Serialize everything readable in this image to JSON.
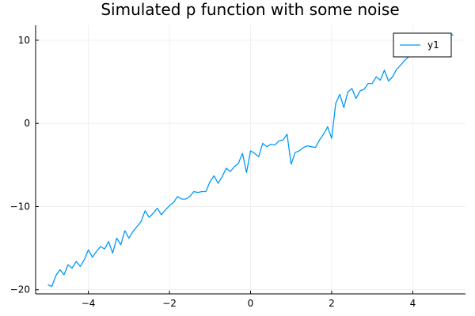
{
  "chart_data": {
    "type": "line",
    "title": "Simulated p function with some noise",
    "xlabel": "",
    "ylabel": "",
    "xlim": [
      -5.3,
      5.3
    ],
    "ylim": [
      -20.5,
      11.8
    ],
    "xticks": [
      -4,
      -2,
      0,
      2,
      4
    ],
    "xtick_labels": [
      "−4",
      "−2",
      "0",
      "2",
      "4"
    ],
    "yticks": [
      -20,
      -10,
      0,
      10
    ],
    "ytick_labels": [
      "−20",
      "−10",
      "0",
      "10"
    ],
    "grid": true,
    "legend": "top-right",
    "series": [
      {
        "name": "y1",
        "color": "#009AFA",
        "x": [
          -5.0,
          -4.9,
          -4.8,
          -4.7,
          -4.6,
          -4.5,
          -4.4,
          -4.3,
          -4.2,
          -4.1,
          -4.0,
          -3.9,
          -3.8,
          -3.7,
          -3.6,
          -3.5,
          -3.4,
          -3.3,
          -3.2,
          -3.1,
          -3.0,
          -2.9,
          -2.8,
          -2.7,
          -2.6,
          -2.5,
          -2.4,
          -2.3,
          -2.2,
          -2.1,
          -2.0,
          -1.9,
          -1.8,
          -1.7,
          -1.6,
          -1.5,
          -1.4,
          -1.3,
          -1.2,
          -1.1,
          -1.0,
          -0.9,
          -0.8,
          -0.7,
          -0.6,
          -0.5,
          -0.4,
          -0.3,
          -0.2,
          -0.1,
          0.0,
          0.1,
          0.2,
          0.3,
          0.4,
          0.5,
          0.6,
          0.7,
          0.8,
          0.9,
          1.0,
          1.1,
          1.2,
          1.3,
          1.4,
          1.5,
          1.6,
          1.7,
          1.8,
          1.9,
          2.0,
          2.1,
          2.2,
          2.3,
          2.4,
          2.5,
          2.6,
          2.7,
          2.8,
          2.9,
          3.0,
          3.1,
          3.2,
          3.3,
          3.4,
          3.5,
          3.6,
          3.7,
          3.8,
          3.9,
          4.0,
          4.1,
          4.2,
          4.3,
          4.4,
          4.5,
          4.6,
          4.7,
          4.8,
          4.9,
          5.0
        ],
        "values": [
          -19.4,
          -19.6,
          -18.3,
          -17.6,
          -18.2,
          -17.0,
          -17.4,
          -16.6,
          -17.2,
          -16.4,
          -15.2,
          -16.1,
          -15.4,
          -14.8,
          -15.1,
          -14.2,
          -15.6,
          -13.8,
          -14.6,
          -12.9,
          -13.8,
          -13.0,
          -12.4,
          -11.8,
          -10.5,
          -11.3,
          -10.8,
          -10.2,
          -11.0,
          -10.4,
          -9.9,
          -9.5,
          -8.8,
          -9.1,
          -9.1,
          -8.8,
          -8.2,
          -8.3,
          -8.2,
          -8.2,
          -7.0,
          -6.3,
          -7.2,
          -6.4,
          -5.4,
          -5.8,
          -5.2,
          -4.8,
          -3.6,
          -5.9,
          -3.3,
          -3.6,
          -4.0,
          -2.4,
          -2.8,
          -2.5,
          -2.6,
          -2.1,
          -2.0,
          -1.3,
          -4.9,
          -3.5,
          -3.3,
          -2.9,
          -2.7,
          -2.8,
          -2.9,
          -2.0,
          -1.3,
          -0.4,
          -1.8,
          2.4,
          3.5,
          1.9,
          3.8,
          4.2,
          3.0,
          3.9,
          4.1,
          4.8,
          4.8,
          5.6,
          5.2,
          6.4,
          5.1,
          5.6,
          6.5,
          7.0,
          7.6,
          8.0,
          8.7,
          8.9,
          9.3,
          10.0,
          10.1,
          10.3,
          10.4,
          10.5,
          10.5,
          10.8,
          10.6
        ]
      }
    ]
  }
}
